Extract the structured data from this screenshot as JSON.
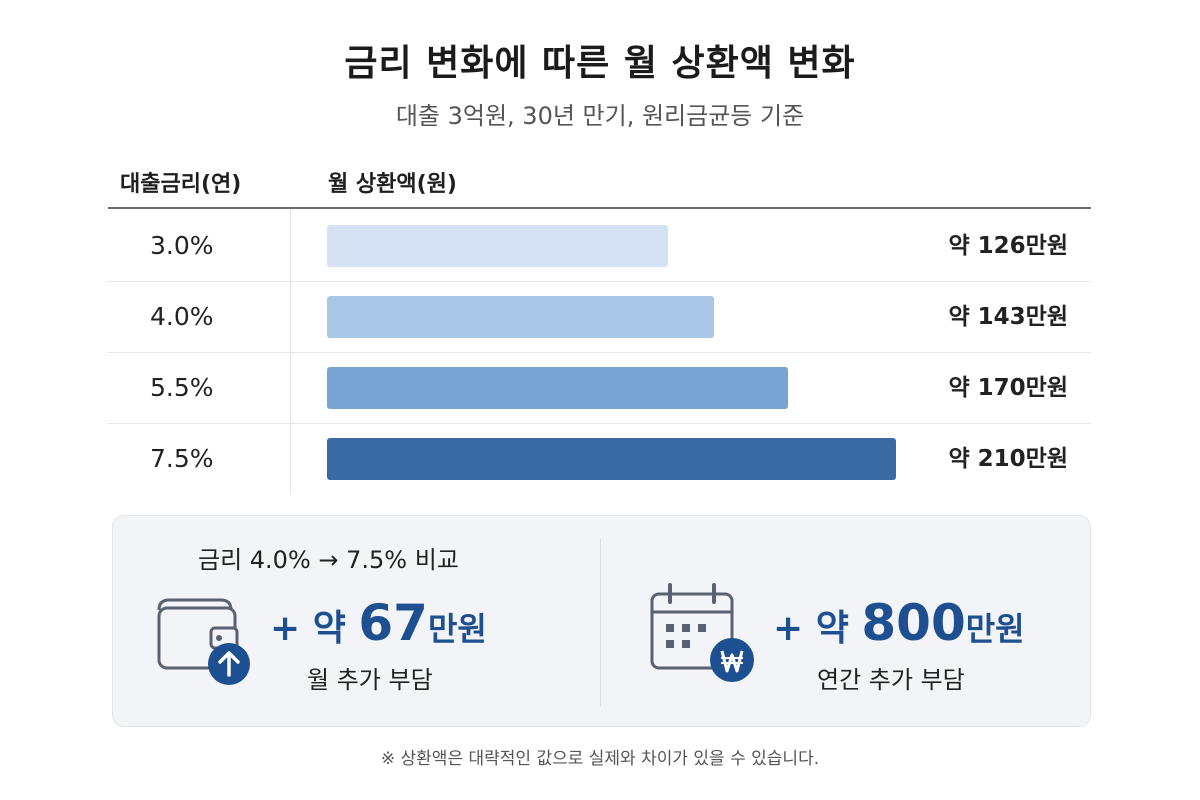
{
  "title": "금리 변화에 따른 월 상환액 변화",
  "subtitle": "대출 3억원, 30년 만기, 원리금균등 기준",
  "colors": {
    "bar_1": "#d4e2f3",
    "bar_2": "#a9c6e6",
    "bar_3": "#78a5d4",
    "bar_4": "#3a6aa3",
    "accent": "#1d4f91"
  },
  "chart_data": {
    "type": "bar",
    "orientation": "horizontal",
    "column_headers": [
      "대출금리(연)",
      "월 상환액(원)"
    ],
    "categories": [
      "3.0%",
      "4.0%",
      "5.5%",
      "7.5%"
    ],
    "values": [
      126,
      143,
      170,
      210
    ],
    "value_labels": [
      "약 126만원",
      "약 143만원",
      "약 170만원",
      "약 210만원"
    ],
    "xlim": [
      0,
      210
    ],
    "grid": false,
    "legend": "none"
  },
  "summary": {
    "compare_label": "금리 4.0% → 7.5% 비교",
    "monthly": {
      "prefix": "+ 약 ",
      "number": "67",
      "unit": "만원",
      "caption": "월 추가 부담",
      "icon": "wallet-up-arrow-icon"
    },
    "yearly": {
      "prefix": "+ 약 ",
      "number": "800",
      "unit": "만원",
      "caption": "연간 추가 부담",
      "icon": "calendar-won-icon"
    }
  },
  "footnote": "※ 상환액은 대략적인 값으로 실제와 차이가 있을 수 있습니다."
}
